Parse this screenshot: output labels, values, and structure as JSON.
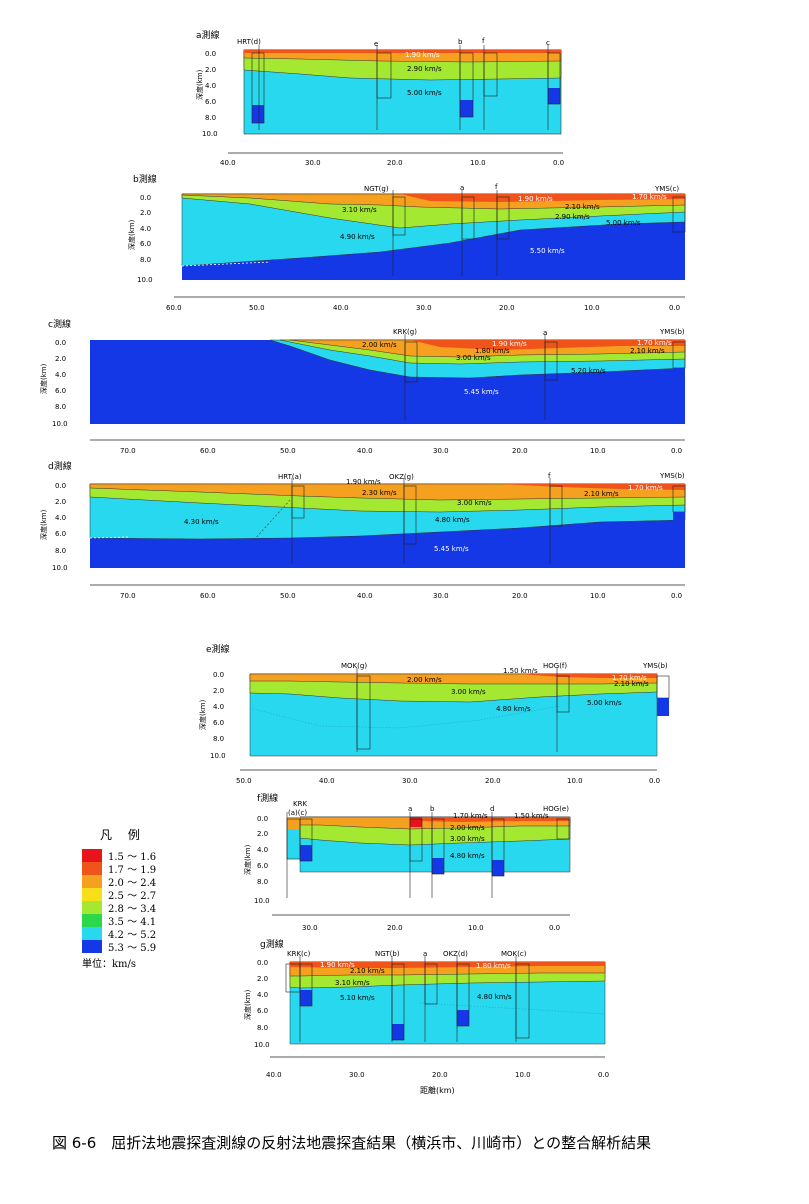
{
  "caption": "図 6-6　屈折法地震探査測線の反射法地震探査結果（横浜市、川崎市）との整合解析結果",
  "common": {
    "depth_ticks": [
      "0.0",
      "2.0",
      "4.0",
      "6.0",
      "8.0",
      "10.0"
    ],
    "depth_label": "深度(km)",
    "distance_label": "距離(km)"
  },
  "legend": {
    "title": "凡 例",
    "unit": "単位：km/s",
    "items": [
      {
        "label": "1.5 ～ 1.6",
        "color": "#e8141c"
      },
      {
        "label": "1.7 ～ 1.9",
        "color": "#f0541a"
      },
      {
        "label": "2.0 ～ 2.4",
        "color": "#f6a020"
      },
      {
        "label": "2.5 ～ 2.7",
        "color": "#f8e018"
      },
      {
        "label": "2.8 ～ 3.4",
        "color": "#a4e832"
      },
      {
        "label": "3.5 ～ 4.1",
        "color": "#2ad84a"
      },
      {
        "label": "4.2 ～ 5.2",
        "color": "#28d8ee"
      },
      {
        "label": "5.3 ～ 5.9",
        "color": "#1438e6"
      }
    ]
  },
  "profiles": [
    {
      "title": "a測線",
      "xticks": [
        "40.0",
        "30.0",
        "20.0",
        "10.0",
        "0.0"
      ],
      "stations": [
        "HRT(d)",
        "e",
        "b",
        "f",
        "c"
      ],
      "velocities": [
        "1.90 km/s",
        "2.90 km/s",
        "5.00 km/s"
      ]
    },
    {
      "title": "b測線",
      "xticks": [
        "60.0",
        "50.0",
        "40.0",
        "30.0",
        "20.0",
        "10.0",
        "0.0"
      ],
      "stations": [
        "NGT(g)",
        "a",
        "f",
        "YMS(c)"
      ],
      "velocities": [
        "3.10 km/s",
        "4.90 km/s",
        "1.90 km/s",
        "2.10 km/s",
        "2.90 km/s",
        "1.70 km/s",
        "5.00 km/s",
        "5.50 km/s"
      ]
    },
    {
      "title": "c測線",
      "xticks": [
        "70.0",
        "60.0",
        "50.0",
        "40.0",
        "30.0",
        "20.0",
        "10.0",
        "0.0"
      ],
      "stations": [
        "KRK(g)",
        "a",
        "YMS(b)"
      ],
      "velocities": [
        "2.00 km/s",
        "1.90 km/s",
        "1.70 km/s",
        "1.80 km/s",
        "2.10 km/s",
        "3.00 km/s",
        "5.20 km/s",
        "5.45 km/s"
      ]
    },
    {
      "title": "d測線",
      "xticks": [
        "70.0",
        "60.0",
        "50.0",
        "40.0",
        "30.0",
        "20.0",
        "10.0",
        "0.0"
      ],
      "stations": [
        "HRT(a)",
        "OKZ(g)",
        "f",
        "YMS(b)"
      ],
      "velocities": [
        "1.90 km/s",
        "2.30 km/s",
        "3.00 km/s",
        "2.10 km/s",
        "1.70 km/s",
        "4.30 km/s",
        "4.80 km/s",
        "5.45 km/s"
      ]
    },
    {
      "title": "e測線",
      "xticks": [
        "50.0",
        "40.0",
        "30.0",
        "20.0",
        "10.0",
        "0.0"
      ],
      "stations": [
        "MOK(g)",
        "HOG(f)",
        "YMS(b)"
      ],
      "velocities": [
        "1.50 km/s",
        "2.00 km/s",
        "1.70 km/s",
        "2.10 km/s",
        "3.00 km/s",
        "4.80 km/s",
        "5.00 km/s"
      ]
    },
    {
      "title": "f測線",
      "xticks": [
        "30.0",
        "20.0",
        "10.0",
        "0.0"
      ],
      "stations": [
        "KRK",
        "(a)(c)",
        "a",
        "b",
        "d",
        "HOG(e)"
      ],
      "velocities": [
        "1.70 km/s",
        "1.50 km/s",
        "2.00 km/s",
        "3.00 km/s",
        "4.80 km/s"
      ]
    },
    {
      "title": "g測線",
      "xticks": [
        "40.0",
        "30.0",
        "20.0",
        "10.0",
        "0.0"
      ],
      "stations": [
        "KRK(c)",
        "NGT(b)",
        "a",
        "OKZ(d)",
        "MOK(c)"
      ],
      "velocities": [
        "1.90 km/s",
        "2.10 km/s",
        "3.10 km/s",
        "5.10 km/s",
        "1.80 km/s",
        "4.80 km/s"
      ]
    }
  ]
}
